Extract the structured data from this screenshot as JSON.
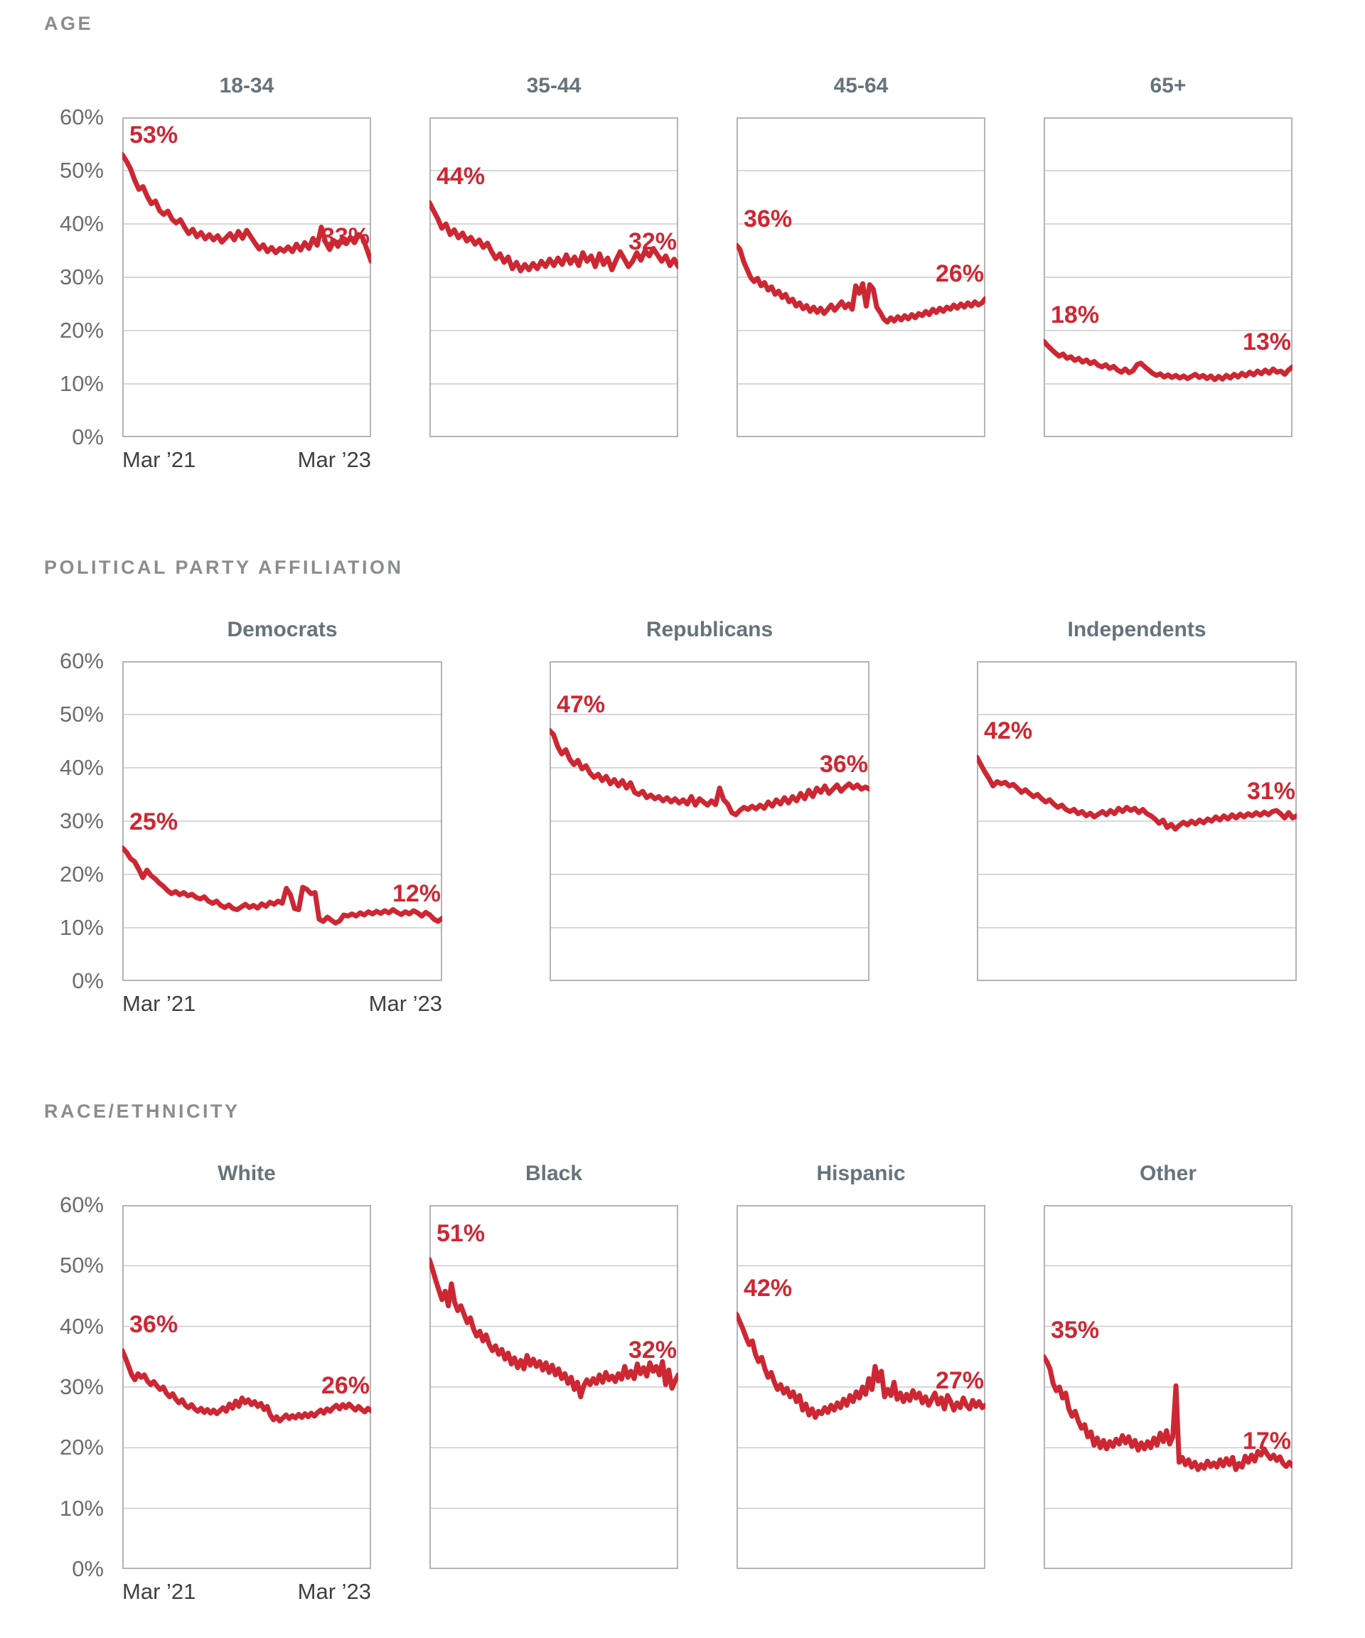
{
  "page": {
    "x_start_label": "Mar ’21",
    "x_end_label": "Mar ’23",
    "y_ticks": [
      "60%",
      "50%",
      "40%",
      "30%",
      "20%",
      "10%",
      "0%"
    ]
  },
  "colors": {
    "line_red": "#cd2733",
    "label_red": "#cd2733",
    "gridline": "#cbccce",
    "chart_border": "#b2b4b6",
    "section_header_gray": "#8a8d90",
    "chart_title_slate": "#66737b",
    "y_tick_gray": "#6b6c6e",
    "x_label_dark": "#3e3f41"
  },
  "chart_data": {
    "type": "line",
    "x_range": [
      "Mar 2021",
      "Mar 2023"
    ],
    "ylim": [
      0,
      60
    ],
    "grid": "horizontal, every 10%",
    "legend": "none",
    "sections": [
      {
        "header": "AGE",
        "charts": [
          {
            "title": "18-34",
            "start_label": "53%",
            "end_label": "33%",
            "values": [
              53,
              51.8,
              50.3,
              48.2,
              46.5,
              47.0,
              45.2,
              43.8,
              44.3,
              42.5,
              41.8,
              42.4,
              40.9,
              40.2,
              40.8,
              39.4,
              38.2,
              39.0,
              37.6,
              38.4,
              37.2,
              38.0,
              37.0,
              37.8,
              36.6,
              37.4,
              38.2,
              37.0,
              38.6,
              37.3,
              38.8,
              37.6,
              36.4,
              35.3,
              36.1,
              34.8,
              35.6,
              34.6,
              35.4,
              34.9,
              35.7,
              34.8,
              36.2,
              35.1,
              36.5,
              35.4,
              37.3,
              36.0,
              39.4,
              36.6,
              35.2,
              36.9,
              35.8,
              37.2,
              36.3,
              37.5,
              36.5,
              38.0,
              37.4,
              35.2,
              33.0
            ]
          },
          {
            "title": "35-44",
            "start_label": "44%",
            "end_label": "32%",
            "values": [
              44,
              42.5,
              41.0,
              39.2,
              40.0,
              38.0,
              38.9,
              37.4,
              38.3,
              36.8,
              37.5,
              36.2,
              37.0,
              35.6,
              36.4,
              34.8,
              33.5,
              34.4,
              32.8,
              33.8,
              31.6,
              32.8,
              31.2,
              32.4,
              31.4,
              32.6,
              31.6,
              33.0,
              32.0,
              33.4,
              32.2,
              33.6,
              32.4,
              34.2,
              32.6,
              33.8,
              32.2,
              34.6,
              33.0,
              34.0,
              32.0,
              34.4,
              32.4,
              33.6,
              31.4,
              33.2,
              34.8,
              33.4,
              32.0,
              33.0,
              34.6,
              33.2,
              35.0,
              34.0,
              35.4,
              34.2,
              33.0,
              34.0,
              32.2,
              33.4,
              32.0
            ]
          },
          {
            "title": "45-64",
            "start_label": "36%",
            "end_label": "26%",
            "values": [
              36,
              35.2,
              33.0,
              31.5,
              30.0,
              29.2,
              29.8,
              28.4,
              29.0,
              27.6,
              28.2,
              26.8,
              27.4,
              26.2,
              26.8,
              25.4,
              25.9,
              24.6,
              25.2,
              24.1,
              24.7,
              23.6,
              24.4,
              23.4,
              24.2,
              23.2,
              24.0,
              24.8,
              23.8,
              24.6,
              25.4,
              24.3,
              25.0,
              24.0,
              28.4,
              27.0,
              28.8,
              24.6,
              28.6,
              27.8,
              24.4,
              23.4,
              22.2,
              21.6,
              22.4,
              21.8,
              22.6,
              22.0,
              22.8,
              22.2,
              23.0,
              22.4,
              23.2,
              22.8,
              23.6,
              23.0,
              24.0,
              23.4,
              24.2,
              23.6,
              24.4,
              24.0,
              24.8,
              24.2,
              25.0,
              24.4,
              25.2,
              24.6,
              25.4,
              24.8,
              25.2,
              26.0
            ]
          },
          {
            "title": "65+",
            "start_label": "18%",
            "end_label": "13%",
            "values": [
              18,
              17.2,
              16.5,
              15.8,
              15.2,
              15.6,
              14.8,
              15.1,
              14.4,
              14.8,
              14.1,
              14.5,
              13.8,
              14.2,
              13.5,
              13.2,
              13.6,
              12.9,
              13.3,
              12.6,
              12.2,
              12.8,
              12.1,
              12.5,
              13.6,
              13.9,
              13.2,
              12.6,
              12.0,
              11.6,
              11.9,
              11.3,
              11.7,
              11.2,
              11.6,
              11.1,
              11.5,
              11.0,
              11.4,
              11.8,
              11.2,
              11.6,
              11.0,
              11.5,
              10.8,
              11.4,
              10.9,
              11.6,
              11.1,
              11.8,
              11.3,
              12.0,
              11.5,
              12.2,
              11.7,
              12.4,
              11.9,
              12.6,
              12.0,
              12.8,
              12.2,
              12.4,
              11.8,
              12.6,
              13.2
            ]
          }
        ]
      },
      {
        "header": "POLITICAL PARTY AFFILIATION",
        "charts": [
          {
            "title": "Democrats",
            "start_label": "25%",
            "end_label": "12%",
            "values": [
              25,
              24.2,
              23.0,
              22.4,
              21.0,
              19.4,
              20.8,
              19.8,
              19.2,
              18.4,
              17.8,
              17.0,
              16.4,
              16.8,
              16.2,
              16.6,
              16.0,
              16.3,
              15.7,
              15.4,
              15.8,
              15.0,
              14.6,
              15.0,
              14.2,
              13.8,
              14.3,
              13.6,
              13.4,
              13.9,
              14.4,
              13.8,
              14.2,
              13.7,
              14.5,
              14.0,
              14.8,
              14.4,
              15.0,
              14.6,
              17.4,
              16.2,
              13.6,
              13.4,
              17.6,
              17.2,
              16.4,
              16.6,
              11.6,
              11.2,
              12.0,
              11.4,
              10.9,
              11.3,
              12.4,
              12.2,
              12.6,
              12.2,
              12.8,
              12.4,
              13.0,
              12.6,
              13.1,
              12.7,
              13.2,
              12.8,
              13.4,
              12.9,
              12.5,
              13.0,
              12.6,
              13.2,
              12.8,
              12.2,
              12.9,
              12.4,
              11.6,
              11.2,
              11.8
            ]
          },
          {
            "title": "Republicans",
            "start_label": "47%",
            "end_label": "36%",
            "values": [
              47,
              46.2,
              44.0,
              42.6,
              43.4,
              41.6,
              40.6,
              41.4,
              39.8,
              40.4,
              39.0,
              38.2,
              38.8,
              37.6,
              38.4,
              37.0,
              37.8,
              36.6,
              37.6,
              36.2,
              37.2,
              35.4,
              35.0,
              35.6,
              34.4,
              34.9,
              34.2,
              34.6,
              33.8,
              34.4,
              33.6,
              34.2,
              33.4,
              34.0,
              33.2,
              34.6,
              33.0,
              34.2,
              33.6,
              33.0,
              33.8,
              33.1,
              36.2,
              34.0,
              33.2,
              31.6,
              31.2,
              32.0,
              32.6,
              32.2,
              32.8,
              32.3,
              33.0,
              32.4,
              33.6,
              32.8,
              34.0,
              33.2,
              34.4,
              33.4,
              34.6,
              33.8,
              35.2,
              34.2,
              35.8,
              34.6,
              36.2,
              35.4,
              36.6,
              35.2,
              36.0,
              36.8,
              35.6,
              36.4,
              37.0,
              36.2,
              36.8,
              36.0,
              36.4,
              36.0
            ]
          },
          {
            "title": "Independents",
            "start_label": "42%",
            "end_label": "31%",
            "values": [
              42,
              40.6,
              39.2,
              38.0,
              36.6,
              37.4,
              37.0,
              37.3,
              36.6,
              36.9,
              36.2,
              35.4,
              35.9,
              35.2,
              34.6,
              35.0,
              34.2,
              33.6,
              34.0,
              33.2,
              32.6,
              33.0,
              32.2,
              31.8,
              32.2,
              31.4,
              31.8,
              31.0,
              31.5,
              30.8,
              31.3,
              31.8,
              31.2,
              32.0,
              31.4,
              32.4,
              31.8,
              32.6,
              32.0,
              32.4,
              31.6,
              32.2,
              31.4,
              31.0,
              30.4,
              29.6,
              30.2,
              28.8,
              29.4,
              28.5,
              29.2,
              29.8,
              29.3,
              30.0,
              29.5,
              30.2,
              29.7,
              30.4,
              30.0,
              30.8,
              30.2,
              31.0,
              30.4,
              31.2,
              30.6,
              31.3,
              30.8,
              31.4,
              31.0,
              31.6,
              31.1,
              31.7,
              31.2,
              31.8,
              32.0,
              31.4,
              30.6,
              31.6,
              30.6,
              31.0
            ]
          }
        ]
      },
      {
        "header": "RACE/ETHNICITY",
        "charts": [
          {
            "title": "White",
            "start_label": "36%",
            "end_label": "26%",
            "values": [
              36,
              34.8,
              33.4,
              32.0,
              31.2,
              32.2,
              31.6,
              32.0,
              31.0,
              30.4,
              30.9,
              30.2,
              29.6,
              30.0,
              29.0,
              28.4,
              28.9,
              28.0,
              27.4,
              27.9,
              27.0,
              26.6,
              27.1,
              26.4,
              26.0,
              26.5,
              25.8,
              26.3,
              25.7,
              26.2,
              25.6,
              26.1,
              26.6,
              26.0,
              27.2,
              26.5,
              27.7,
              26.8,
              28.2,
              27.4,
              27.9,
              27.1,
              27.6,
              26.8,
              27.3,
              26.3,
              26.8,
              25.4,
              24.6,
              25.1,
              24.4,
              24.9,
              25.4,
              24.8,
              25.3,
              24.9,
              25.5,
              25.0,
              25.6,
              25.1,
              25.7,
              25.2,
              25.8,
              26.2,
              25.7,
              26.4,
              26.0,
              26.6,
              27.0,
              26.4,
              27.1,
              26.6,
              27.2,
              26.7,
              26.2,
              26.8,
              26.3,
              25.9,
              26.5,
              26.1
            ]
          },
          {
            "title": "Black",
            "start_label": "51%",
            "end_label": "32%",
            "values": [
              51,
              49.4,
              47.6,
              46.0,
              44.4,
              45.8,
              43.4,
              47.0,
              44.0,
              42.6,
              43.4,
              42.0,
              40.6,
              41.4,
              39.6,
              38.4,
              39.2,
              37.6,
              38.6,
              37.0,
              36.0,
              36.8,
              35.4,
              36.2,
              34.6,
              35.6,
              33.8,
              34.8,
              33.2,
              34.4,
              33.0,
              35.2,
              33.6,
              34.6,
              33.4,
              34.2,
              32.8,
              34.0,
              32.4,
              33.6,
              32.0,
              33.0,
              31.4,
              32.2,
              30.6,
              31.6,
              29.6,
              30.8,
              28.4,
              30.2,
              31.2,
              30.4,
              31.4,
              30.6,
              32.0,
              30.8,
              32.4,
              31.2,
              31.8,
              30.9,
              32.2,
              31.3,
              33.4,
              31.6,
              32.6,
              31.4,
              33.8,
              32.2,
              33.2,
              31.8,
              34.0,
              32.6,
              33.4,
              32.0,
              34.2,
              30.4,
              32.8,
              29.8,
              31.0,
              32.0
            ]
          },
          {
            "title": "Hispanic",
            "start_label": "42%",
            "end_label": "27%",
            "values": [
              42,
              40.8,
              39.6,
              38.2,
              37.0,
              37.6,
              35.4,
              34.2,
              34.9,
              33.0,
              31.6,
              32.4,
              30.8,
              29.6,
              30.4,
              29.0,
              29.8,
              28.4,
              29.2,
              27.6,
              28.6,
              26.2,
              27.2,
              25.4,
              26.4,
              25.0,
              26.0,
              25.6,
              26.6,
              25.8,
              27.0,
              26.2,
              27.4,
              26.6,
              28.0,
              27.0,
              28.6,
              27.6,
              29.2,
              28.2,
              30.0,
              28.8,
              31.4,
              29.6,
              33.4,
              31.0,
              32.6,
              28.4,
              29.6,
              28.6,
              30.8,
              28.0,
              29.0,
              27.6,
              28.8,
              27.8,
              29.4,
              28.2,
              29.0,
              27.4,
              28.4,
              27.0,
              28.0,
              29.0,
              27.2,
              28.2,
              26.4,
              28.6,
              27.6,
              26.2,
              27.4,
              26.6,
              28.2,
              27.0,
              26.4,
              27.8,
              26.8,
              27.6,
              26.6,
              27.0
            ]
          },
          {
            "title": "Other",
            "start_label": "35%",
            "end_label": "17%",
            "values": [
              35,
              34.2,
              33.0,
              30.6,
              29.4,
              30.0,
              28.2,
              29.0,
              26.4,
              25.2,
              26.0,
              24.4,
              23.2,
              23.8,
              21.8,
              22.6,
              20.4,
              21.6,
              20.0,
              21.2,
              19.8,
              21.0,
              20.2,
              21.4,
              20.6,
              22.0,
              20.8,
              21.8,
              20.2,
              21.2,
              19.6,
              20.8,
              19.8,
              21.0,
              20.0,
              21.6,
              20.4,
              22.4,
              21.0,
              22.8,
              20.6,
              21.8,
              30.2,
              17.6,
              18.4,
              17.2,
              18.0,
              16.8,
              17.6,
              16.4,
              17.2,
              16.6,
              17.8,
              16.9,
              17.5,
              16.8,
              18.0,
              17.0,
              18.2,
              17.2,
              18.4,
              16.4,
              17.4,
              16.8,
              18.6,
              17.6,
              18.8,
              17.8,
              19.4,
              18.8,
              19.8,
              18.9,
              18.2,
              18.8,
              17.9,
              18.5,
              17.4,
              16.9,
              17.6,
              17.0
            ]
          }
        ]
      }
    ]
  }
}
